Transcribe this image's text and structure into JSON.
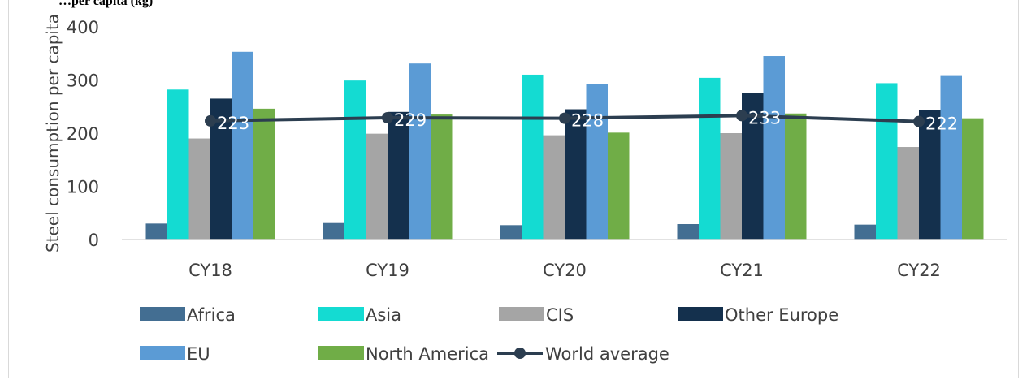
{
  "chart_data": {
    "type": "bar",
    "title": "…per capita (kg)",
    "xlabel": "",
    "ylabel": "Steel consumption per capita",
    "ylim": [
      0,
      400
    ],
    "yticks": [
      0,
      100,
      200,
      300,
      400
    ],
    "categories": [
      "CY18",
      "CY19",
      "CY20",
      "CY21",
      "CY22"
    ],
    "series": [
      {
        "name": "Africa",
        "color": "#436e92",
        "values": [
          30,
          31,
          27,
          29,
          28
        ]
      },
      {
        "name": "Asia",
        "color": "#14dbd2",
        "values": [
          282,
          299,
          310,
          304,
          294
        ]
      },
      {
        "name": "CIS",
        "color": "#a5a5a5",
        "values": [
          190,
          199,
          196,
          200,
          174
        ]
      },
      {
        "name": "Other Europe",
        "color": "#14304d",
        "values": [
          265,
          240,
          245,
          276,
          243
        ]
      },
      {
        "name": "EU",
        "color": "#5b9bd5",
        "values": [
          353,
          331,
          293,
          345,
          309
        ]
      },
      {
        "name": "North America",
        "color": "#70ad47",
        "values": [
          246,
          235,
          201,
          237,
          228
        ]
      }
    ],
    "line_series": {
      "name": "World average",
      "color": "#2c3e50",
      "values": [
        223,
        229,
        228,
        233,
        222
      ],
      "labels": [
        "223",
        "229",
        "228",
        "233",
        "222"
      ]
    },
    "grid": false,
    "legend_position": "bottom"
  }
}
